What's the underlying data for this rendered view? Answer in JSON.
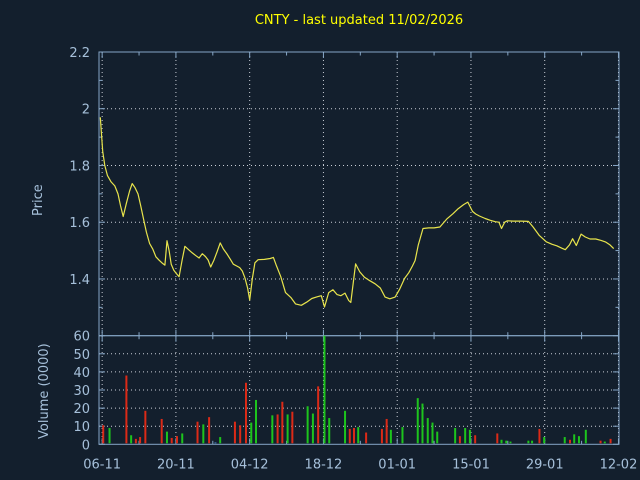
{
  "title": {
    "text": "CNTY - last updated 11/02/2026"
  },
  "colors": {
    "background": "#131f2d",
    "frame": "#86a6c6",
    "tick_text": "#a6c0da",
    "grid": "#c9ced6",
    "price_line": "#e8e44c",
    "title_text": "#ffff00",
    "volume_up": "#1dc41d",
    "volume_down": "#dc2a17",
    "volume_flat": "#4a90d9"
  },
  "chart_data": [
    {
      "type": "line",
      "panel": "price",
      "ylabel": "Price",
      "ylim": [
        1.2,
        2.2
      ],
      "grid": true,
      "legend_position": "none",
      "yticks": [
        {
          "value": 2.2,
          "label": "2.2"
        },
        {
          "value": 2.0,
          "label": "2"
        },
        {
          "value": 1.8,
          "label": "1.8"
        },
        {
          "value": 1.6,
          "label": "1.6"
        },
        {
          "value": 1.4,
          "label": "1.4"
        }
      ],
      "yticks_minor": [
        2.1,
        1.9,
        1.7,
        1.5,
        1.3
      ],
      "x_unit": "days since 06-11",
      "xlim": [
        -0.6,
        98.1
      ],
      "series": [
        {
          "name": "CNTY close price",
          "color_key": "price_line",
          "points": [
            [
              -0.35,
              1.97
            ],
            [
              0.1,
              1.85
            ],
            [
              0.5,
              1.8
            ],
            [
              1.0,
              1.765
            ],
            [
              1.7,
              1.742
            ],
            [
              2.4,
              1.728
            ],
            [
              3.0,
              1.7
            ],
            [
              3.5,
              1.657
            ],
            [
              4.0,
              1.62
            ],
            [
              4.6,
              1.667
            ],
            [
              5.2,
              1.71
            ],
            [
              5.7,
              1.736
            ],
            [
              6.2,
              1.723
            ],
            [
              6.8,
              1.7
            ],
            [
              7.3,
              1.66
            ],
            [
              7.9,
              1.607
            ],
            [
              8.4,
              1.565
            ],
            [
              9.0,
              1.525
            ],
            [
              9.6,
              1.506
            ],
            [
              10.2,
              1.478
            ],
            [
              10.8,
              1.466
            ],
            [
              11.4,
              1.456
            ],
            [
              11.9,
              1.449
            ],
            [
              12.3,
              1.535
            ],
            [
              12.7,
              1.5
            ],
            [
              13.1,
              1.452
            ],
            [
              13.6,
              1.431
            ],
            [
              14.1,
              1.419
            ],
            [
              14.6,
              1.408
            ],
            [
              15.2,
              1.468
            ],
            [
              15.7,
              1.515
            ],
            [
              16.4,
              1.503
            ],
            [
              17.1,
              1.492
            ],
            [
              17.8,
              1.482
            ],
            [
              18.4,
              1.474
            ],
            [
              19.0,
              1.489
            ],
            [
              19.6,
              1.479
            ],
            [
              20.1,
              1.467
            ],
            [
              20.6,
              1.442
            ],
            [
              21.2,
              1.466
            ],
            [
              21.8,
              1.495
            ],
            [
              22.4,
              1.527
            ],
            [
              23.0,
              1.506
            ],
            [
              23.7,
              1.488
            ],
            [
              24.3,
              1.47
            ],
            [
              24.9,
              1.452
            ],
            [
              25.5,
              1.446
            ],
            [
              26.1,
              1.44
            ],
            [
              26.6,
              1.428
            ],
            [
              27.1,
              1.404
            ],
            [
              27.6,
              1.368
            ],
            [
              28.0,
              1.326
            ],
            [
              28.5,
              1.4
            ],
            [
              29.0,
              1.457
            ],
            [
              29.6,
              1.468
            ],
            [
              30.8,
              1.469
            ],
            [
              31.9,
              1.472
            ],
            [
              32.5,
              1.476
            ],
            [
              33.1,
              1.446
            ],
            [
              33.9,
              1.408
            ],
            [
              34.8,
              1.352
            ],
            [
              35.8,
              1.335
            ],
            [
              36.7,
              1.312
            ],
            [
              37.8,
              1.307
            ],
            [
              38.8,
              1.318
            ],
            [
              39.8,
              1.331
            ],
            [
              40.8,
              1.337
            ],
            [
              41.6,
              1.341
            ],
            [
              42.2,
              1.301
            ],
            [
              43.0,
              1.352
            ],
            [
              43.8,
              1.362
            ],
            [
              44.6,
              1.345
            ],
            [
              45.3,
              1.341
            ],
            [
              46.1,
              1.35
            ],
            [
              46.8,
              1.324
            ],
            [
              47.2,
              1.317
            ],
            [
              48.1,
              1.453
            ],
            [
              48.9,
              1.425
            ],
            [
              49.8,
              1.406
            ],
            [
              50.8,
              1.394
            ],
            [
              51.8,
              1.383
            ],
            [
              52.8,
              1.368
            ],
            [
              53.7,
              1.336
            ],
            [
              54.6,
              1.33
            ],
            [
              55.6,
              1.336
            ],
            [
              56.5,
              1.365
            ],
            [
              57.4,
              1.402
            ],
            [
              58.2,
              1.422
            ],
            [
              58.9,
              1.446
            ],
            [
              59.4,
              1.465
            ],
            [
              60.0,
              1.52
            ],
            [
              60.9,
              1.578
            ],
            [
              62.0,
              1.58
            ],
            [
              63.0,
              1.58
            ],
            [
              64.1,
              1.583
            ],
            [
              65.4,
              1.611
            ],
            [
              66.6,
              1.63
            ],
            [
              67.6,
              1.648
            ],
            [
              68.6,
              1.662
            ],
            [
              69.4,
              1.671
            ],
            [
              70.3,
              1.638
            ],
            [
              70.9,
              1.629
            ],
            [
              71.6,
              1.622
            ],
            [
              72.7,
              1.613
            ],
            [
              73.6,
              1.607
            ],
            [
              74.6,
              1.602
            ],
            [
              75.3,
              1.6
            ],
            [
              75.8,
              1.578
            ],
            [
              76.4,
              1.6
            ],
            [
              76.9,
              1.605
            ],
            [
              78.0,
              1.604
            ],
            [
              79.5,
              1.604
            ],
            [
              80.9,
              1.603
            ],
            [
              81.8,
              1.583
            ],
            [
              83.0,
              1.553
            ],
            [
              84.3,
              1.531
            ],
            [
              85.4,
              1.522
            ],
            [
              86.3,
              1.517
            ],
            [
              87.3,
              1.508
            ],
            [
              87.9,
              1.503
            ],
            [
              88.7,
              1.52
            ],
            [
              89.3,
              1.542
            ],
            [
              90.0,
              1.518
            ],
            [
              90.9,
              1.558
            ],
            [
              91.7,
              1.548
            ],
            [
              92.6,
              1.541
            ],
            [
              93.7,
              1.541
            ],
            [
              94.7,
              1.536
            ],
            [
              95.6,
              1.53
            ],
            [
              96.4,
              1.52
            ],
            [
              97.1,
              1.507
            ]
          ]
        }
      ]
    },
    {
      "type": "bar",
      "panel": "volume",
      "ylabel": "Volume (0000)",
      "ylim": [
        0,
        60
      ],
      "grid": true,
      "yticks": [
        {
          "value": 60,
          "label": "60"
        },
        {
          "value": 50,
          "label": "50"
        },
        {
          "value": 40,
          "label": "40"
        },
        {
          "value": 30,
          "label": "30"
        },
        {
          "value": 20,
          "label": "20"
        },
        {
          "value": 10,
          "label": "10"
        },
        {
          "value": 0,
          "label": "0"
        }
      ],
      "xlim": [
        -0.6,
        98.1
      ],
      "xticks": [
        {
          "day": 0,
          "label": "06-11"
        },
        {
          "day": 14,
          "label": "20-11"
        },
        {
          "day": 28,
          "label": "04-12"
        },
        {
          "day": 42,
          "label": "18-12"
        },
        {
          "day": 56,
          "label": "01-01"
        },
        {
          "day": 70,
          "label": "15-01"
        },
        {
          "day": 84,
          "label": "29-01"
        },
        {
          "day": 98,
          "label": "12-02"
        }
      ],
      "xticks_minor_days": [
        7,
        21,
        35,
        49,
        63,
        77,
        91
      ],
      "bars": [
        {
          "day": 0.2,
          "value": 10.5,
          "dir": "down"
        },
        {
          "day": 1.4,
          "value": 9,
          "dir": "up"
        },
        {
          "day": 4.6,
          "value": 38,
          "dir": "down"
        },
        {
          "day": 5.5,
          "value": 5,
          "dir": "up"
        },
        {
          "day": 6.4,
          "value": 3,
          "dir": "down"
        },
        {
          "day": 7.2,
          "value": 4,
          "dir": "down"
        },
        {
          "day": 8.2,
          "value": 18.5,
          "dir": "down"
        },
        {
          "day": 11.3,
          "value": 14,
          "dir": "down"
        },
        {
          "day": 12.3,
          "value": 7,
          "dir": "up"
        },
        {
          "day": 13.2,
          "value": 3.5,
          "dir": "down"
        },
        {
          "day": 14.2,
          "value": 4.5,
          "dir": "down"
        },
        {
          "day": 15.2,
          "value": 6,
          "dir": "up"
        },
        {
          "day": 18.1,
          "value": 12.5,
          "dir": "down"
        },
        {
          "day": 19.2,
          "value": 11,
          "dir": "up"
        },
        {
          "day": 20.3,
          "value": 15,
          "dir": "down"
        },
        {
          "day": 21.5,
          "value": 1,
          "dir": "flat"
        },
        {
          "day": 22.4,
          "value": 4,
          "dir": "up"
        },
        {
          "day": 25.2,
          "value": 12.5,
          "dir": "down"
        },
        {
          "day": 26.2,
          "value": 10.5,
          "dir": "down"
        },
        {
          "day": 27.3,
          "value": 34,
          "dir": "down"
        },
        {
          "day": 28.3,
          "value": 12,
          "dir": "up"
        },
        {
          "day": 29.2,
          "value": 24.5,
          "dir": "up"
        },
        {
          "day": 32.3,
          "value": 16,
          "dir": "up"
        },
        {
          "day": 33.3,
          "value": 16.5,
          "dir": "down"
        },
        {
          "day": 34.2,
          "value": 23.5,
          "dir": "down"
        },
        {
          "day": 35.2,
          "value": 16.5,
          "dir": "up"
        },
        {
          "day": 36.1,
          "value": 18,
          "dir": "down"
        },
        {
          "day": 39.0,
          "value": 21,
          "dir": "up"
        },
        {
          "day": 40.0,
          "value": 17,
          "dir": "up"
        },
        {
          "day": 41.0,
          "value": 32,
          "dir": "down"
        },
        {
          "day": 42.2,
          "value": 60,
          "dir": "up"
        },
        {
          "day": 43.1,
          "value": 14.5,
          "dir": "up"
        },
        {
          "day": 46.1,
          "value": 18.5,
          "dir": "up"
        },
        {
          "day": 47.0,
          "value": 8.5,
          "dir": "down"
        },
        {
          "day": 47.8,
          "value": 9,
          "dir": "down"
        },
        {
          "day": 48.6,
          "value": 9.5,
          "dir": "up"
        },
        {
          "day": 50.1,
          "value": 6.5,
          "dir": "down"
        },
        {
          "day": 53.1,
          "value": 8.5,
          "dir": "down"
        },
        {
          "day": 54.0,
          "value": 14,
          "dir": "down"
        },
        {
          "day": 54.8,
          "value": 8,
          "dir": "up"
        },
        {
          "day": 57.0,
          "value": 9.5,
          "dir": "up"
        },
        {
          "day": 59.9,
          "value": 25.5,
          "dir": "up"
        },
        {
          "day": 60.8,
          "value": 22.5,
          "dir": "up"
        },
        {
          "day": 61.8,
          "value": 14.5,
          "dir": "up"
        },
        {
          "day": 62.7,
          "value": 12,
          "dir": "up"
        },
        {
          "day": 63.6,
          "value": 7,
          "dir": "up"
        },
        {
          "day": 67.0,
          "value": 9,
          "dir": "up"
        },
        {
          "day": 67.9,
          "value": 4.5,
          "dir": "down"
        },
        {
          "day": 68.9,
          "value": 9,
          "dir": "up"
        },
        {
          "day": 69.8,
          "value": 8,
          "dir": "up"
        },
        {
          "day": 70.8,
          "value": 5,
          "dir": "down"
        },
        {
          "day": 75.0,
          "value": 6,
          "dir": "down"
        },
        {
          "day": 75.8,
          "value": 2.5,
          "dir": "up"
        },
        {
          "day": 76.7,
          "value": 2,
          "dir": "up"
        },
        {
          "day": 77.5,
          "value": 1.5,
          "dir": "up"
        },
        {
          "day": 80.9,
          "value": 2,
          "dir": "up"
        },
        {
          "day": 81.6,
          "value": 2,
          "dir": "up"
        },
        {
          "day": 83.0,
          "value": 8.5,
          "dir": "down"
        },
        {
          "day": 83.9,
          "value": 4,
          "dir": "up"
        },
        {
          "day": 87.8,
          "value": 4,
          "dir": "up"
        },
        {
          "day": 88.8,
          "value": 2.5,
          "dir": "down"
        },
        {
          "day": 89.6,
          "value": 5.5,
          "dir": "up"
        },
        {
          "day": 90.5,
          "value": 4.5,
          "dir": "up"
        },
        {
          "day": 91.8,
          "value": 8,
          "dir": "up"
        },
        {
          "day": 94.6,
          "value": 2,
          "dir": "down"
        },
        {
          "day": 95.4,
          "value": 1.5,
          "dir": "up"
        },
        {
          "day": 96.5,
          "value": 3,
          "dir": "down"
        }
      ]
    }
  ]
}
